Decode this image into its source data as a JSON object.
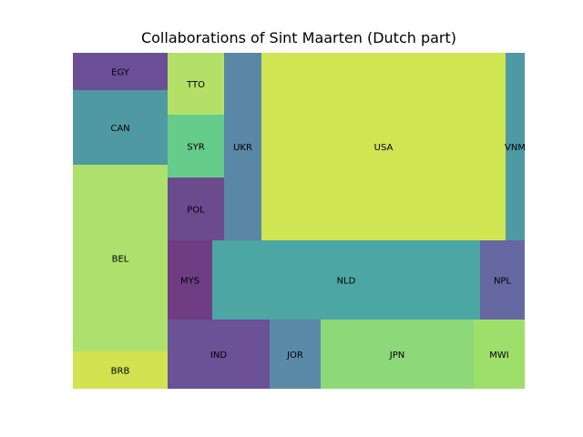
{
  "chart_data": {
    "type": "treemap",
    "title": "Collaborations of Sint Maarten (Dutch part)",
    "xlabel": "",
    "ylabel": "",
    "grid": false,
    "legend": "none",
    "cells": [
      {
        "label": "EGY",
        "value": 2,
        "color": "#6b4f96"
      },
      {
        "label": "CAN",
        "value": 4,
        "color": "#4f9aa2"
      },
      {
        "label": "BEL",
        "value": 10,
        "color": "#aee06e"
      },
      {
        "label": "BRB",
        "value": 2,
        "color": "#d2e250"
      },
      {
        "label": "TTO",
        "value": 2,
        "color": "#b4e068"
      },
      {
        "label": "SYR",
        "value": 2,
        "color": "#66cc8c"
      },
      {
        "label": "POL",
        "value": 2,
        "color": "#6b4a8e"
      },
      {
        "label": "UKR",
        "value": 4,
        "color": "#5b87a6"
      },
      {
        "label": "USA",
        "value": 22,
        "color": "#d0e552"
      },
      {
        "label": "VNM",
        "value": 2,
        "color": "#4e9aa4"
      },
      {
        "label": "MYS",
        "value": 2,
        "color": "#6e3d84"
      },
      {
        "label": "NLD",
        "value": 12,
        "color": "#4ba6a4"
      },
      {
        "label": "NPL",
        "value": 2,
        "color": "#6668a2"
      },
      {
        "label": "IND",
        "value": 4,
        "color": "#6b5196"
      },
      {
        "label": "JOR",
        "value": 2,
        "color": "#5a8aa8"
      },
      {
        "label": "JPN",
        "value": 6,
        "color": "#8dd878"
      },
      {
        "label": "MWI",
        "value": 2,
        "color": "#9edf6c"
      }
    ]
  }
}
